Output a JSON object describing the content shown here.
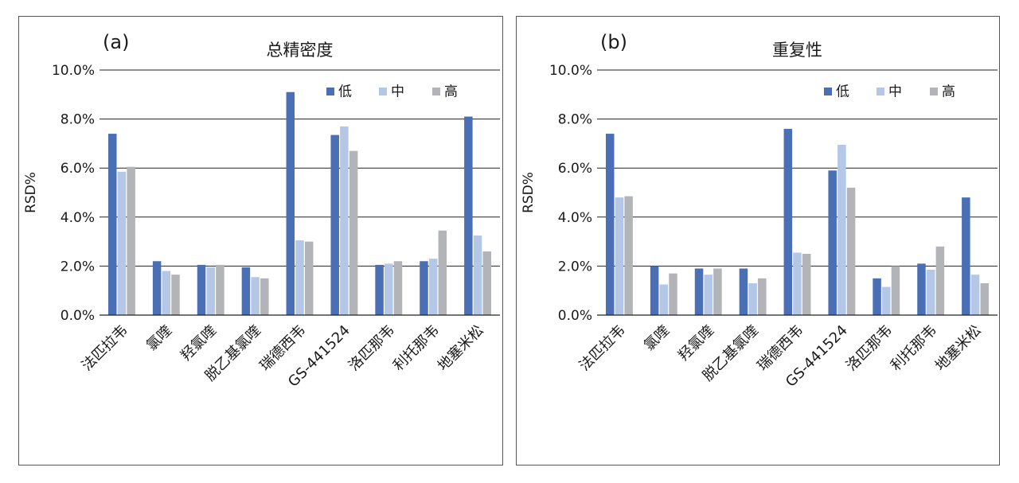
{
  "colors": {
    "low": "#4a6fb5",
    "mid": "#b4c7e7",
    "high": "#b2b4b8",
    "grid": "#222222"
  },
  "chart_data": [
    {
      "type": "bar",
      "panel_label": "(a)",
      "title": "总精密度",
      "ylabel": "RSD%",
      "xlabel": "",
      "ylim": [
        0,
        10
      ],
      "yticks": [
        "0.0%",
        "2.0%",
        "4.0%",
        "6.0%",
        "8.0%",
        "10.0%"
      ],
      "grid": true,
      "legend_position": "top-right",
      "categories": [
        "法匹拉韦",
        "氯喹",
        "羟氯喹",
        "脱乙基氯喹",
        "瑞德西韦",
        "GS-441524",
        "洛匹那韦",
        "利托那韦",
        "地塞米松"
      ],
      "series": [
        {
          "name": "低",
          "values": [
            7.4,
            2.2,
            2.05,
            1.95,
            9.1,
            7.35,
            2.05,
            2.2,
            8.1
          ]
        },
        {
          "name": "中",
          "values": [
            5.85,
            1.8,
            1.95,
            1.55,
            3.05,
            7.7,
            2.1,
            2.3,
            3.25
          ]
        },
        {
          "name": "高",
          "values": [
            6.05,
            1.65,
            2.05,
            1.5,
            3.0,
            6.7,
            2.2,
            3.45,
            2.6
          ]
        }
      ]
    },
    {
      "type": "bar",
      "panel_label": "(b)",
      "title": "重复性",
      "ylabel": "RSD%",
      "xlabel": "",
      "ylim": [
        0,
        10
      ],
      "yticks": [
        "0.0%",
        "2.0%",
        "4.0%",
        "6.0%",
        "8.0%",
        "10.0%"
      ],
      "grid": true,
      "legend_position": "top-right",
      "categories": [
        "法匹拉韦",
        "氯喹",
        "羟氯喹",
        "脱乙基氯喹",
        "瑞德西韦",
        "GS-441524",
        "洛匹那韦",
        "利托那韦",
        "地塞米松"
      ],
      "series": [
        {
          "name": "低",
          "values": [
            7.4,
            2.0,
            1.9,
            1.9,
            7.6,
            5.9,
            1.5,
            2.1,
            4.8
          ]
        },
        {
          "name": "中",
          "values": [
            4.8,
            1.25,
            1.65,
            1.3,
            2.55,
            6.95,
            1.15,
            1.85,
            1.65
          ]
        },
        {
          "name": "高",
          "values": [
            4.85,
            1.7,
            1.9,
            1.5,
            2.5,
            5.2,
            2.0,
            2.8,
            1.3
          ]
        }
      ]
    }
  ]
}
